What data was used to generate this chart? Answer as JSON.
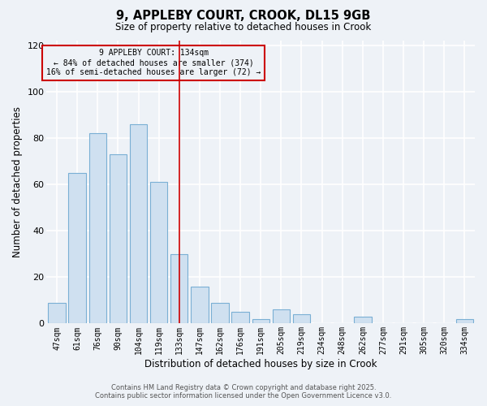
{
  "title": "9, APPLEBY COURT, CROOK, DL15 9GB",
  "subtitle": "Size of property relative to detached houses in Crook",
  "xlabel": "Distribution of detached houses by size in Crook",
  "ylabel": "Number of detached properties",
  "categories": [
    "47sqm",
    "61sqm",
    "76sqm",
    "90sqm",
    "104sqm",
    "119sqm",
    "133sqm",
    "147sqm",
    "162sqm",
    "176sqm",
    "191sqm",
    "205sqm",
    "219sqm",
    "234sqm",
    "248sqm",
    "262sqm",
    "277sqm",
    "291sqm",
    "305sqm",
    "320sqm",
    "334sqm"
  ],
  "values": [
    9,
    65,
    82,
    73,
    86,
    61,
    30,
    16,
    9,
    5,
    2,
    6,
    4,
    0,
    0,
    3,
    0,
    0,
    0,
    0,
    2
  ],
  "bar_color": "#cfe0f0",
  "bar_edge_color": "#7aafd4",
  "vline_x": 6.0,
  "vline_color": "#cc0000",
  "annotation_title": "9 APPLEBY COURT: 134sqm",
  "annotation_line1": "← 84% of detached houses are smaller (374)",
  "annotation_line2": "16% of semi-detached houses are larger (72) →",
  "annotation_box_color": "#cc0000",
  "ylim": [
    0,
    122
  ],
  "yticks": [
    0,
    20,
    40,
    60,
    80,
    100,
    120
  ],
  "footer1": "Contains HM Land Registry data © Crown copyright and database right 2025.",
  "footer2": "Contains public sector information licensed under the Open Government Licence v3.0.",
  "background_color": "#eef2f7",
  "grid_color": "#ffffff"
}
